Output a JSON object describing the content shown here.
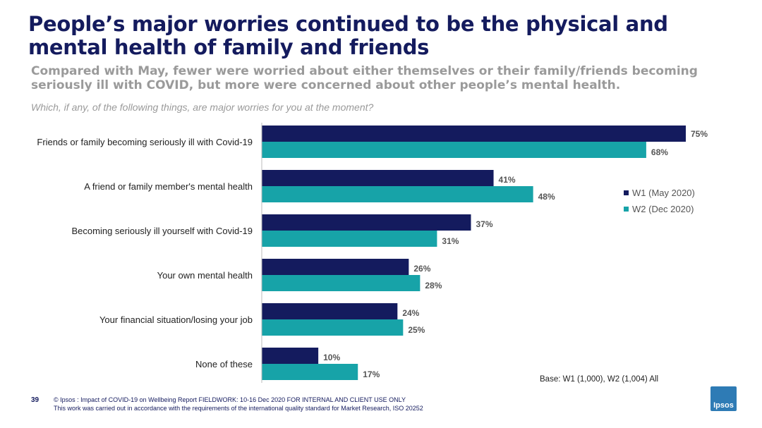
{
  "title": "People’s major worries continued to be the physical and mental health of family and friends",
  "subtitle": "Compared with May, fewer were worried about either themselves or their family/friends becoming seriously ill with COVID, but more were concerned about other people’s mental health.",
  "question": "Which, if any, of the following things, are major worries for you at the moment?",
  "base_note": "Base: W1 (1,000), W2 (1,004) All",
  "page_number": "39",
  "footer": {
    "line1": "© Ipsos : Impact of COVID-19 on Wellbeing Report FIELDWORK: 10-16 Dec 2020 FOR INTERNAL AND CLIENT USE ONLY",
    "line2": "This work was carried out in accordance with the requirements of the international quality standard for Market Research, ISO 20252"
  },
  "logo_text": "Ipsos",
  "colors": {
    "w1": "#141b5e",
    "w2": "#17a3a8",
    "title": "#141b5e"
  },
  "chart_data": {
    "type": "bar",
    "orientation": "horizontal",
    "categories": [
      "Friends or family becoming seriously ill with Covid-19",
      "A friend or family member's mental health",
      "Becoming seriously ill yourself with Covid-19",
      "Your own mental health",
      "Your financial situation/losing your job",
      "None of these"
    ],
    "series": [
      {
        "name": "W1 (May 2020)",
        "values": [
          75,
          41,
          37,
          26,
          24,
          10
        ],
        "labels": [
          "75%",
          "41%",
          "37%",
          "26%",
          "24%",
          "10%"
        ]
      },
      {
        "name": "W2 (Dec 2020)",
        "values": [
          68,
          48,
          31,
          28,
          25,
          17
        ],
        "labels": [
          "68%",
          "48%",
          "31%",
          "28%",
          "25%",
          "17%"
        ]
      }
    ],
    "xlim": [
      0,
      75
    ],
    "legend_position": "right",
    "grid": false
  }
}
